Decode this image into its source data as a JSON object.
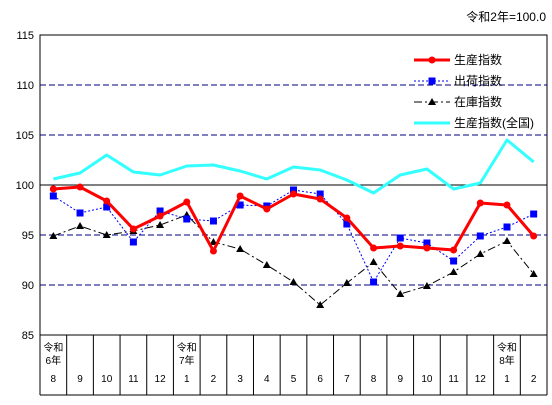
{
  "chart_data": {
    "type": "line",
    "note": "令和2年=100.0",
    "ylim": [
      85,
      115
    ],
    "yticks": [
      85,
      90,
      95,
      100,
      105,
      110,
      115
    ],
    "categories": [
      {
        "month": "8",
        "era": "令和",
        "year": "6年"
      },
      {
        "month": "9"
      },
      {
        "month": "10"
      },
      {
        "month": "11"
      },
      {
        "month": "12"
      },
      {
        "month": "1",
        "era": "令和",
        "year": "7年"
      },
      {
        "month": "2"
      },
      {
        "month": "3"
      },
      {
        "month": "4"
      },
      {
        "month": "5"
      },
      {
        "month": "6"
      },
      {
        "month": "7"
      },
      {
        "month": "8"
      },
      {
        "month": "9"
      },
      {
        "month": "10"
      },
      {
        "month": "11"
      },
      {
        "month": "12"
      },
      {
        "month": "1",
        "era": "令和",
        "year": "8年"
      },
      {
        "month": "2"
      }
    ],
    "series": [
      {
        "name": "生産指数",
        "color": "#ff0000",
        "style": "solid-thick",
        "marker": "circle",
        "values": [
          99.6,
          99.8,
          98.4,
          95.6,
          96.9,
          98.3,
          93.4,
          98.9,
          97.6,
          99.1,
          98.6,
          96.7,
          93.7,
          93.9,
          93.7,
          93.5,
          98.2,
          98.0,
          94.9
        ]
      },
      {
        "name": "出荷指数",
        "color": "#0000ff",
        "style": "dotted",
        "marker": "square",
        "values": [
          98.9,
          97.2,
          97.8,
          94.3,
          97.4,
          96.6,
          96.4,
          98.0,
          97.9,
          99.5,
          99.1,
          96.1,
          90.3,
          94.7,
          94.2,
          92.4,
          94.9,
          95.8,
          97.1
        ]
      },
      {
        "name": "在庫指数",
        "color": "#000000",
        "style": "dashdot",
        "marker": "triangle",
        "values": [
          94.9,
          95.9,
          95.0,
          95.4,
          96.0,
          97.0,
          94.3,
          93.6,
          92.0,
          90.3,
          88.0,
          90.2,
          92.3,
          89.1,
          89.9,
          91.3,
          93.1,
          94.4,
          91.1
        ]
      },
      {
        "name": "生産指数(全国)",
        "color": "#33ffff",
        "style": "solid-thick",
        "marker": "none",
        "values": [
          100.6,
          101.2,
          103.0,
          101.3,
          101.0,
          101.9,
          102.0,
          101.4,
          100.6,
          101.8,
          101.5,
          100.5,
          99.2,
          101.0,
          101.6,
          99.6,
          100.2,
          104.5,
          102.3
        ]
      }
    ]
  }
}
